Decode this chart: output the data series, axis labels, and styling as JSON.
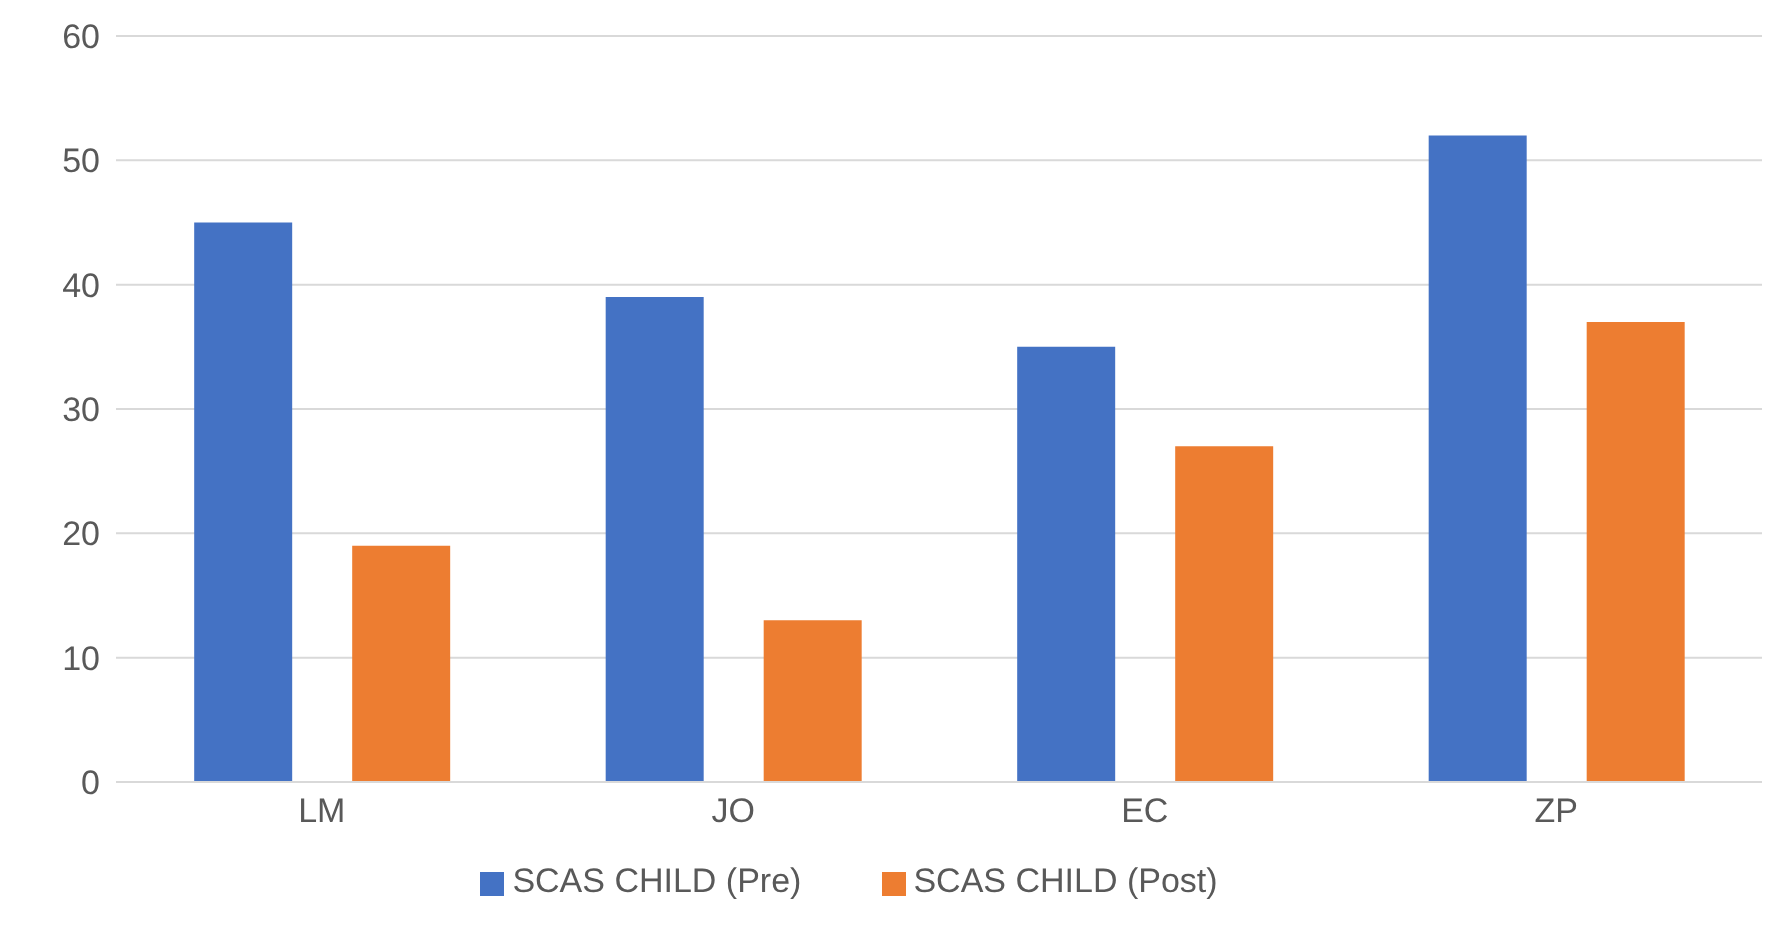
{
  "chart_data": {
    "type": "bar",
    "categories": [
      "LM",
      "JO",
      "EC",
      "ZP"
    ],
    "series": [
      {
        "name": "SCAS CHILD (Pre)",
        "color": "#4472c4",
        "values": [
          45,
          39,
          35,
          52
        ]
      },
      {
        "name": "SCAS CHILD (Post)",
        "color": "#ed7d31",
        "values": [
          19,
          13,
          27,
          37
        ]
      }
    ],
    "ylim": [
      0,
      60
    ],
    "yticks": [
      0,
      10,
      20,
      30,
      40,
      50,
      60
    ],
    "grid": "y",
    "legend": "bottom"
  }
}
